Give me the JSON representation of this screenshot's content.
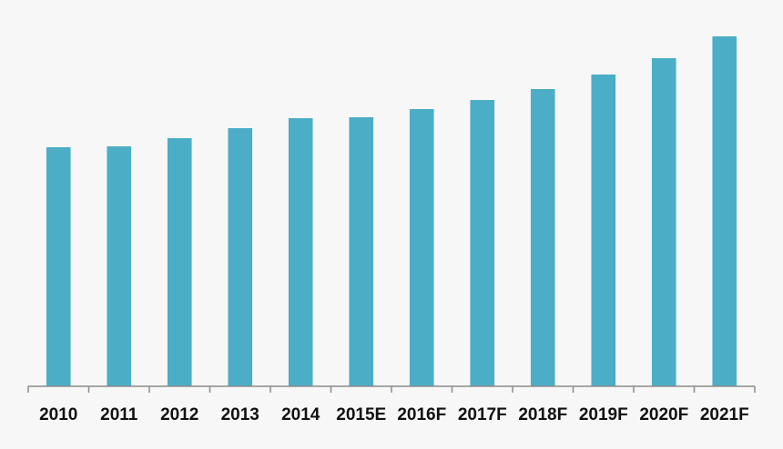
{
  "chart_data": {
    "type": "bar",
    "categories": [
      "2010",
      "2011",
      "2012",
      "2013",
      "2014",
      "2015E",
      "2016F",
      "2017F",
      "2018F",
      "2019F",
      "2020F",
      "2021F"
    ],
    "values": [
      263,
      264,
      273,
      284,
      295,
      296,
      305,
      315,
      327,
      343,
      361,
      385
    ],
    "color": "#4badc6",
    "ylim": [
      0,
      400
    ]
  }
}
